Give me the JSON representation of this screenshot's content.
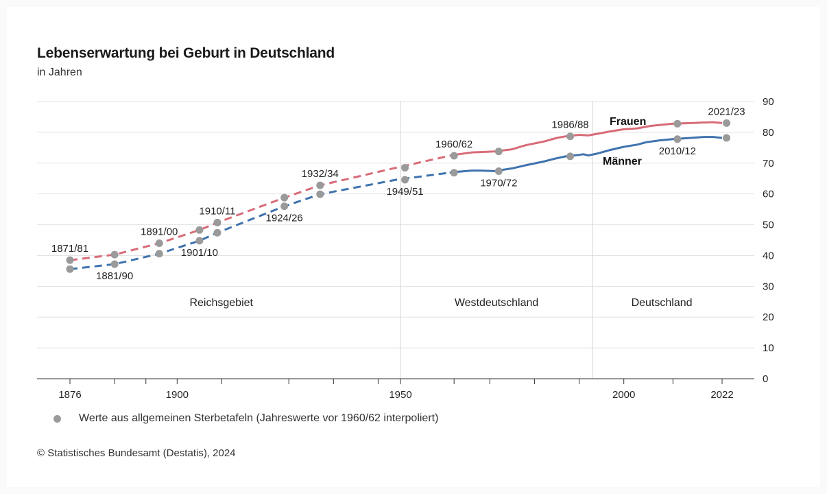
{
  "header": {
    "title": "Lebenserwartung bei Geburt in Deutschland",
    "subtitle": "in Jahren"
  },
  "legend": {
    "label": "Werte aus allgemeinen Sterbetafeln (Jahreswerte vor 1960/62 interpoliert)"
  },
  "source": "© Statistisches Bundesamt (Destatis), 2024",
  "colors": {
    "frauen": "#d86b78",
    "maenner": "#3f73ae",
    "marker": "#9a9a9a",
    "grid": "#e3e3e3",
    "axis": "#333333"
  },
  "chart_data": {
    "type": "line",
    "xlim": [
      1871,
      2024
    ],
    "ylim": [
      0,
      90
    ],
    "y_ticks": [
      0,
      10,
      20,
      30,
      40,
      50,
      60,
      70,
      80,
      90
    ],
    "x_tick_labels": [
      "1876",
      "1900",
      "1950",
      "2000",
      "2022"
    ],
    "x_minor_ticks": [
      1876,
      1886,
      1893,
      1900,
      1910,
      1925,
      1935,
      1945,
      1950,
      1962,
      1970,
      1980,
      1990,
      2000,
      2011,
      2022
    ],
    "grid": true,
    "regions": [
      {
        "label": "Reichsgebiet",
        "from": 1871,
        "to": 1950
      },
      {
        "label": "Westdeutschland",
        "from": 1950,
        "to": 1993
      },
      {
        "label": "Deutschland",
        "from": 1993,
        "to": 2024
      }
    ],
    "region_dividers": [
      1950,
      1993
    ],
    "series": [
      {
        "name": "Frauen",
        "dashed": [
          [
            1876,
            38.5
          ],
          [
            1886,
            40.3
          ],
          [
            1896,
            44.0
          ],
          [
            1905,
            48.3
          ],
          [
            1909,
            50.7
          ],
          [
            1924,
            58.8
          ],
          [
            1932,
            62.8
          ],
          [
            1949,
            68.5
          ],
          [
            1961,
            72.4
          ]
        ],
        "solid": [
          [
            1961,
            72.4
          ],
          [
            1963,
            72.9
          ],
          [
            1966,
            73.5
          ],
          [
            1968,
            73.6
          ],
          [
            1971,
            73.8
          ],
          [
            1975,
            74.5
          ],
          [
            1978,
            75.8
          ],
          [
            1982,
            77.0
          ],
          [
            1985,
            78.2
          ],
          [
            1987,
            78.7
          ],
          [
            1990,
            79.2
          ],
          [
            1992,
            79.0
          ],
          [
            1994,
            79.5
          ],
          [
            1997,
            80.3
          ],
          [
            2000,
            81.0
          ],
          [
            2003,
            81.3
          ],
          [
            2006,
            82.1
          ],
          [
            2011,
            82.8
          ],
          [
            2015,
            83.0
          ],
          [
            2018,
            83.2
          ],
          [
            2020,
            83.3
          ],
          [
            2022,
            83.0
          ]
        ]
      },
      {
        "name": "Männer",
        "dashed": [
          [
            1876,
            35.6
          ],
          [
            1886,
            37.2
          ],
          [
            1896,
            40.6
          ],
          [
            1905,
            44.8
          ],
          [
            1909,
            47.4
          ],
          [
            1924,
            56.0
          ],
          [
            1932,
            59.9
          ],
          [
            1949,
            64.6
          ],
          [
            1961,
            66.9
          ]
        ],
        "solid": [
          [
            1961,
            66.9
          ],
          [
            1963,
            67.2
          ],
          [
            1966,
            67.6
          ],
          [
            1968,
            67.6
          ],
          [
            1971,
            67.4
          ],
          [
            1975,
            68.3
          ],
          [
            1978,
            69.3
          ],
          [
            1982,
            70.5
          ],
          [
            1985,
            71.6
          ],
          [
            1987,
            72.2
          ],
          [
            1990,
            72.7
          ],
          [
            1991,
            72.9
          ],
          [
            1992,
            72.5
          ],
          [
            1994,
            73.1
          ],
          [
            1997,
            74.3
          ],
          [
            2000,
            75.3
          ],
          [
            2003,
            76.0
          ],
          [
            2005,
            76.8
          ],
          [
            2008,
            77.4
          ],
          [
            2011,
            77.8
          ],
          [
            2015,
            78.2
          ],
          [
            2018,
            78.5
          ],
          [
            2020,
            78.5
          ],
          [
            2022,
            78.2
          ]
        ]
      }
    ],
    "points": [
      {
        "x": 1876,
        "frauen": 38.5,
        "maenner": 35.6,
        "label": "1871/81",
        "label_pos": "above"
      },
      {
        "x": 1886,
        "frauen": 40.3,
        "maenner": 37.2,
        "label": "1881/90",
        "label_pos": "below"
      },
      {
        "x": 1896,
        "frauen": 44.0,
        "maenner": 40.6,
        "label": "1891/00",
        "label_pos": "above"
      },
      {
        "x": 1905,
        "frauen": 48.3,
        "maenner": 44.8,
        "label": "1901/10",
        "label_pos": "below"
      },
      {
        "x": 1909,
        "frauen": 50.7,
        "maenner": 47.4,
        "label": "1910/11",
        "label_pos": "above"
      },
      {
        "x": 1924,
        "frauen": 58.8,
        "maenner": 56.0,
        "label": "1924/26",
        "label_pos": "below"
      },
      {
        "x": 1932,
        "frauen": 62.8,
        "maenner": 59.9,
        "label": "1932/34",
        "label_pos": "above"
      },
      {
        "x": 1951,
        "frauen": 68.5,
        "maenner": 64.6,
        "label": "1949/51",
        "label_pos": "below"
      },
      {
        "x": 1962,
        "frauen": 72.4,
        "maenner": 66.9,
        "label": "1960/62",
        "label_pos": "above"
      },
      {
        "x": 1972,
        "frauen": 73.8,
        "maenner": 67.4,
        "label": "1970/72",
        "label_pos": "below"
      },
      {
        "x": 1988,
        "frauen": 78.7,
        "maenner": 72.2,
        "label": "1986/88",
        "label_pos": "above"
      },
      {
        "x": 2012,
        "frauen": 82.8,
        "maenner": 77.8,
        "label": "2010/12",
        "label_pos": "below"
      },
      {
        "x": 2023,
        "frauen": 83.0,
        "maenner": 78.2,
        "label": "2021/23",
        "label_pos": "above"
      }
    ],
    "series_labels": [
      {
        "text": "Frauen",
        "series": "Frauen"
      },
      {
        "text": "Männer",
        "series": "Männer"
      }
    ]
  }
}
